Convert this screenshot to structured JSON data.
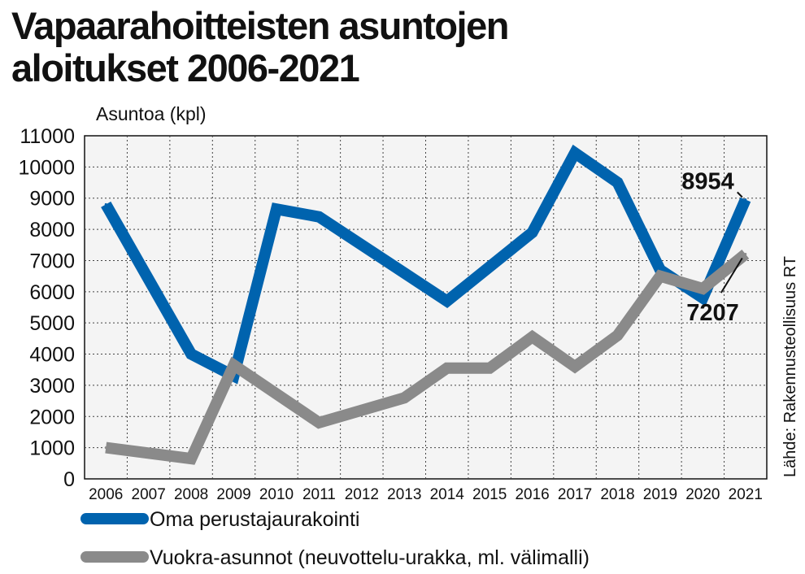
{
  "title_lines": [
    "Vapaarahoitteisten asuntojen",
    "aloitukset 2006-2021"
  ],
  "source": "Lähde: Rakennusteollisuus RT",
  "colors": {
    "series_1": "#0063ae",
    "series_2": "#8a8a8a",
    "plot_bg": "#f4f4f4",
    "grid": "#444444"
  },
  "chart_data": {
    "type": "line",
    "ylabel": "Asuntoa (kpl)",
    "xlabel": "",
    "ylim": [
      0,
      11000
    ],
    "yticks": [
      0,
      1000,
      2000,
      3000,
      4000,
      5000,
      6000,
      7000,
      8000,
      9000,
      10000,
      11000
    ],
    "categories": [
      "2006",
      "2007",
      "2008",
      "2009",
      "2010",
      "2011",
      "2012",
      "2013",
      "2014",
      "2015",
      "2016",
      "2017",
      "2018",
      "2019",
      "2020",
      "2021"
    ],
    "grid": true,
    "legend_position": "bottom",
    "series": [
      {
        "name": "Oma perustajaurakointi",
        "values": [
          8800,
          null,
          4000,
          3300,
          8650,
          8400,
          null,
          null,
          5700,
          null,
          7900,
          10450,
          9500,
          6700,
          5800,
          8954
        ]
      },
      {
        "name": "Vuokra-asunnot (neuvottelu-urakka, ml. välimalli)",
        "values": [
          1000,
          null,
          650,
          3650,
          null,
          1800,
          null,
          2600,
          3550,
          3550,
          4550,
          3600,
          4600,
          6500,
          6100,
          7207
        ]
      }
    ],
    "annotations": [
      {
        "text": "8954",
        "series": 0,
        "category": "2021",
        "value": 8954
      },
      {
        "text": "7207",
        "series": 1,
        "category": "2021",
        "value": 7207
      }
    ]
  }
}
